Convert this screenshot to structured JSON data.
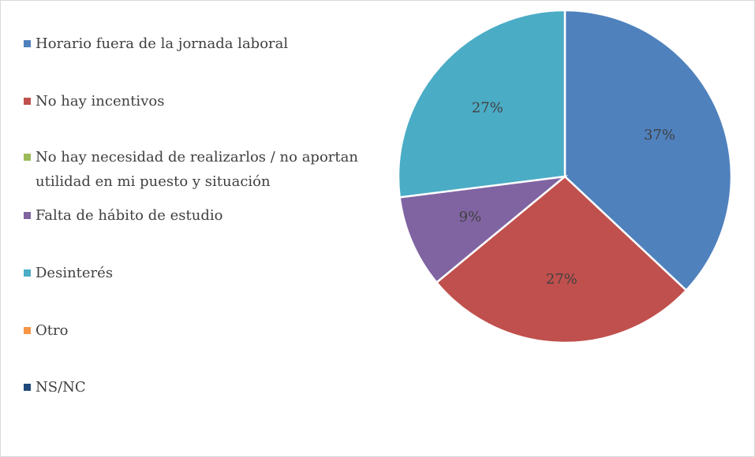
{
  "chart_data": {
    "type": "pie",
    "categories": [
      "Horario fuera de la jornada laboral",
      "No hay incentivos",
      "No hay necesidad de realizarlos / no aportan utilidad en mi puesto y situación",
      "Falta de hábito de estudio",
      "Desinterés",
      "Otro",
      "NS/NC"
    ],
    "values": [
      37,
      27,
      0,
      9,
      27,
      0,
      0
    ],
    "value_labels": [
      "37%",
      "27%",
      null,
      "9%",
      "27%",
      null,
      null
    ],
    "colors": [
      "#4f81bd",
      "#c0504d",
      "#9bbb59",
      "#8064a2",
      "#4bacc6",
      "#f79646",
      "#1f497d"
    ],
    "legend": "left"
  }
}
